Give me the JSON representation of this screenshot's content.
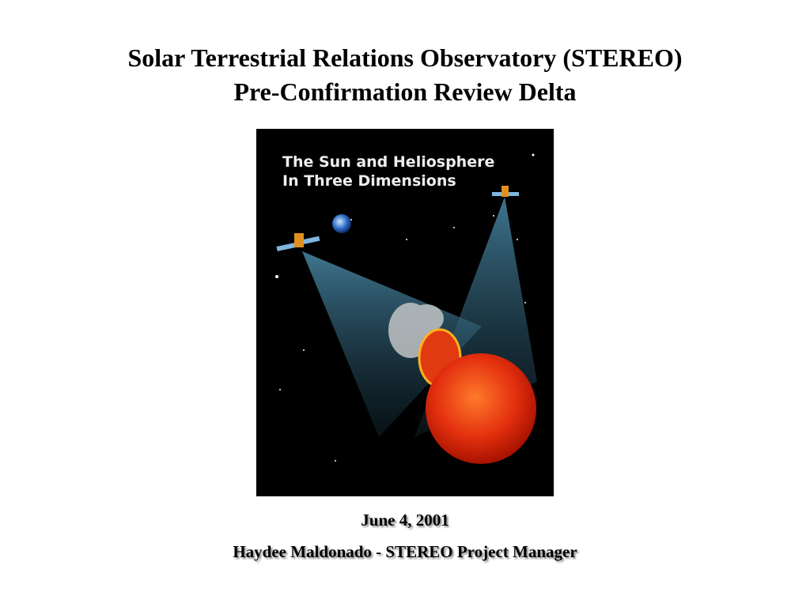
{
  "slide": {
    "title_line1": "Solar Terrestrial Relations Observatory (STEREO)",
    "title_line2": "Pre-Confirmation Review Delta",
    "image": {
      "caption_line1": "The Sun and Heliosphere",
      "caption_line2": "In Three Dimensions"
    },
    "date": "June 4, 2001",
    "presenter": "Haydee Maldonado - STEREO Project Manager"
  }
}
